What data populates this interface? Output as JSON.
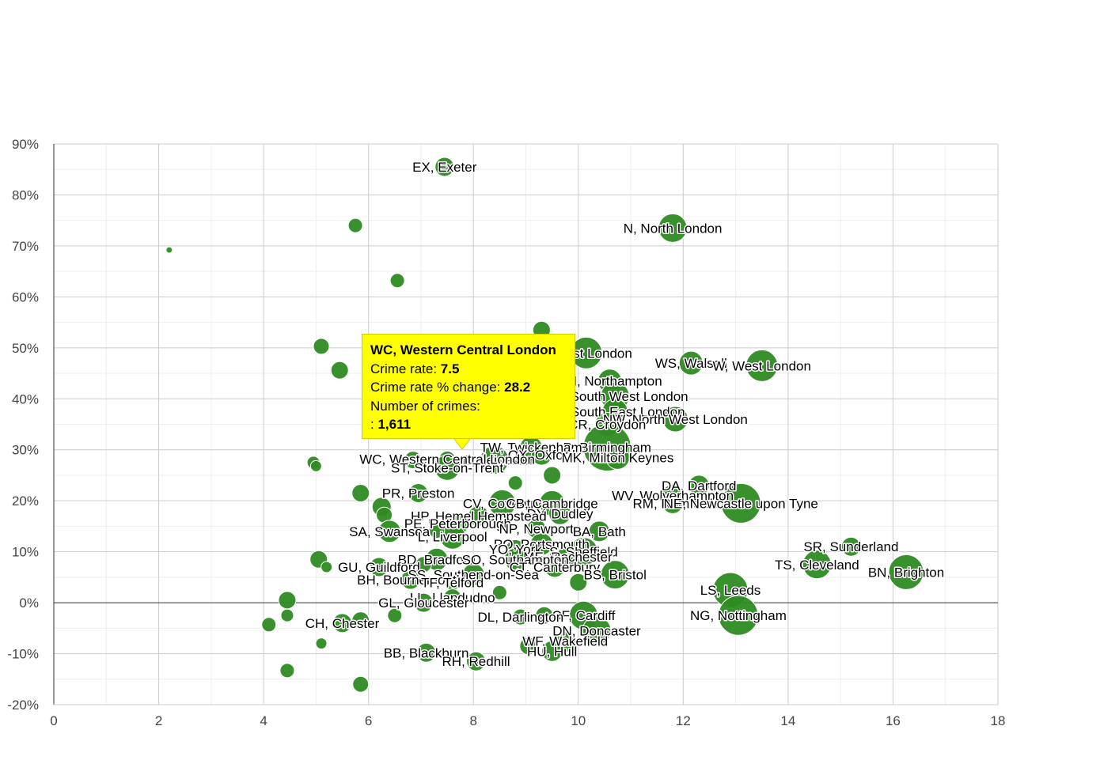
{
  "chart_data": {
    "type": "scatter",
    "xlim": [
      0,
      18
    ],
    "ylim": [
      -20,
      90
    ],
    "x_ticks": [
      "0",
      "2",
      "4",
      "6",
      "8",
      "10",
      "12",
      "14",
      "16",
      "18"
    ],
    "y_ticks": [
      "90%",
      "80%",
      "70%",
      "60%",
      "50%",
      "40%",
      "30%",
      "20%",
      "10%",
      "0%",
      "-10%",
      "-20%"
    ],
    "grid": true,
    "bubble_color": "#2e8b22",
    "points": [
      {
        "label": "EX, Exeter",
        "x": 7.45,
        "y": 85.5,
        "r": 12
      },
      {
        "label": "",
        "x": 2.2,
        "y": 69.2,
        "r": 4
      },
      {
        "label": "",
        "x": 5.75,
        "y": 74.0,
        "r": 9
      },
      {
        "label": "",
        "x": 6.55,
        "y": 63.2,
        "r": 9
      },
      {
        "label": "N, North London",
        "x": 11.8,
        "y": 73.5,
        "r": 18
      },
      {
        "label": "",
        "x": 9.3,
        "y": 53.5,
        "r": 11
      },
      {
        "label": "",
        "x": 5.1,
        "y": 50.3,
        "r": 10
      },
      {
        "label": "",
        "x": 5.45,
        "y": 45.6,
        "r": 11
      },
      {
        "label": "E, East London",
        "x": 10.15,
        "y": 49.0,
        "r": 20
      },
      {
        "label": "WS, Walsall",
        "x": 12.15,
        "y": 47.0,
        "r": 15
      },
      {
        "label": "W, West London",
        "x": 13.5,
        "y": 46.5,
        "r": 20
      },
      {
        "label": "NN, Northampton",
        "x": 10.6,
        "y": 43.5,
        "r": 15
      },
      {
        "label": "SW, South West London",
        "x": 10.7,
        "y": 40.5,
        "r": 18
      },
      {
        "label": "SE, South East London",
        "x": 10.7,
        "y": 37.5,
        "r": 16
      },
      {
        "label": "NW, North West London",
        "x": 11.85,
        "y": 36.0,
        "r": 16
      },
      {
        "label": "CR, Croydon",
        "x": 10.55,
        "y": 35.0,
        "r": 15
      },
      {
        "label": "B, Birmingham",
        "x": 10.55,
        "y": 30.5,
        "r": 30
      },
      {
        "label": "TW, Twickenham",
        "x": 9.1,
        "y": 30.5,
        "r": 14
      },
      {
        "label": "OX, Oxford",
        "x": 9.3,
        "y": 29.0,
        "r": 13
      },
      {
        "label": "MK, Milton Keynes",
        "x": 10.75,
        "y": 28.5,
        "r": 15
      },
      {
        "label": "LE, Leicester",
        "x": 8.4,
        "y": 28.0,
        "r": 18
      },
      {
        "label": "WC, Western Central London",
        "x": 7.5,
        "y": 28.2,
        "r": 10
      },
      {
        "label": "ST, Stoke-on-Trent",
        "x": 7.5,
        "y": 26.5,
        "r": 16
      },
      {
        "label": "",
        "x": 6.85,
        "y": 28.0,
        "r": 11
      },
      {
        "label": "",
        "x": 4.95,
        "y": 27.5,
        "r": 8
      },
      {
        "label": "",
        "x": 5.0,
        "y": 26.8,
        "r": 7
      },
      {
        "label": "",
        "x": 9.5,
        "y": 25.0,
        "r": 11
      },
      {
        "label": "",
        "x": 8.8,
        "y": 23.5,
        "r": 9
      },
      {
        "label": "DA, Dartford",
        "x": 12.3,
        "y": 23.0,
        "r": 13
      },
      {
        "label": "WV, Wolverhampton",
        "x": 11.8,
        "y": 21.0,
        "r": 14
      },
      {
        "label": "RM, Romford",
        "x": 11.8,
        "y": 19.5,
        "r": 13
      },
      {
        "label": "NE, Newcastle upon Tyne",
        "x": 13.1,
        "y": 19.5,
        "r": 25
      },
      {
        "label": "",
        "x": 5.85,
        "y": 21.5,
        "r": 11
      },
      {
        "label": "PR, Preston",
        "x": 6.95,
        "y": 21.5,
        "r": 12
      },
      {
        "label": "CV, Coventry",
        "x": 8.55,
        "y": 19.5,
        "r": 17
      },
      {
        "label": "CB, Cambridge",
        "x": 9.5,
        "y": 19.5,
        "r": 16
      },
      {
        "label": "DY, Dudley",
        "x": 9.65,
        "y": 17.5,
        "r": 14
      },
      {
        "label": "",
        "x": 6.25,
        "y": 18.8,
        "r": 12
      },
      {
        "label": "",
        "x": 6.3,
        "y": 17.2,
        "r": 10
      },
      {
        "label": "HP, Hemel Hempstead",
        "x": 8.1,
        "y": 17.0,
        "r": 13
      },
      {
        "label": "PE, Peterborough",
        "x": 7.7,
        "y": 15.5,
        "r": 14
      },
      {
        "label": "NP, Newport",
        "x": 9.2,
        "y": 14.5,
        "r": 12
      },
      {
        "label": "BA, Bath",
        "x": 10.4,
        "y": 14.0,
        "r": 13
      },
      {
        "label": "SA, Swansea",
        "x": 6.4,
        "y": 14.0,
        "r": 14
      },
      {
        "label": "L, Liverpool",
        "x": 7.6,
        "y": 13.0,
        "r": 16
      },
      {
        "label": "",
        "x": 7.3,
        "y": 14.2,
        "r": 10
      },
      {
        "label": "PO, Portsmouth",
        "x": 9.3,
        "y": 11.5,
        "r": 14
      },
      {
        "label": "YO, York",
        "x": 8.8,
        "y": 10.5,
        "r": 12
      },
      {
        "label": "S, Sheffield",
        "x": 10.1,
        "y": 10.0,
        "r": 18
      },
      {
        "label": "ME, Rochester",
        "x": 9.8,
        "y": 9.0,
        "r": 14
      },
      {
        "label": "BD, Bradford",
        "x": 7.3,
        "y": 8.5,
        "r": 14
      },
      {
        "label": "SO, Southampton",
        "x": 8.8,
        "y": 8.5,
        "r": 14
      },
      {
        "label": "CT, Canterbury",
        "x": 9.55,
        "y": 7.0,
        "r": 13
      },
      {
        "label": "",
        "x": 5.05,
        "y": 8.5,
        "r": 11
      },
      {
        "label": "",
        "x": 5.2,
        "y": 7.0,
        "r": 7
      },
      {
        "label": "GU, Guildford",
        "x": 6.2,
        "y": 7.0,
        "r": 12
      },
      {
        "label": "",
        "x": 7.05,
        "y": 7.5,
        "r": 10
      },
      {
        "label": "SS, Southend-on-Sea",
        "x": 8.0,
        "y": 5.5,
        "r": 14
      },
      {
        "label": "BS, Bristol",
        "x": 10.7,
        "y": 5.5,
        "r": 18
      },
      {
        "label": "BH, Bournemouth",
        "x": 6.8,
        "y": 4.5,
        "r": 12
      },
      {
        "label": "TF, Telford",
        "x": 7.6,
        "y": 4.0,
        "r": 10
      },
      {
        "label": "",
        "x": 10.0,
        "y": 4.0,
        "r": 11
      },
      {
        "label": "",
        "x": 8.5,
        "y": 2.0,
        "r": 9
      },
      {
        "label": "LL, Llandudno",
        "x": 7.6,
        "y": 1.0,
        "r": 11
      },
      {
        "label": "GL, Gloucester",
        "x": 7.05,
        "y": 0.0,
        "r": 12
      },
      {
        "label": "",
        "x": 4.45,
        "y": 0.5,
        "r": 11
      },
      {
        "label": "LS, Leeds",
        "x": 12.9,
        "y": 2.5,
        "r": 22
      },
      {
        "label": "SR, Sunderland",
        "x": 15.2,
        "y": 11.0,
        "r": 12
      },
      {
        "label": "TS, Cleveland",
        "x": 14.55,
        "y": 7.5,
        "r": 18
      },
      {
        "label": "BN, Brighton",
        "x": 16.25,
        "y": 6.0,
        "r": 22
      },
      {
        "label": "NG, Nottingham",
        "x": 13.05,
        "y": -2.5,
        "r": 25
      },
      {
        "label": "CF, Cardiff",
        "x": 10.1,
        "y": -2.5,
        "r": 18
      },
      {
        "label": "DL, Darlington",
        "x": 8.9,
        "y": -2.8,
        "r": 10
      },
      {
        "label": "",
        "x": 9.35,
        "y": -2.5,
        "r": 11
      },
      {
        "label": "",
        "x": 4.45,
        "y": -2.5,
        "r": 8
      },
      {
        "label": "",
        "x": 6.5,
        "y": -2.5,
        "r": 9
      },
      {
        "label": "CH, Chester",
        "x": 5.5,
        "y": -4.0,
        "r": 12
      },
      {
        "label": "",
        "x": 5.85,
        "y": -3.5,
        "r": 11
      },
      {
        "label": "",
        "x": 4.1,
        "y": -4.3,
        "r": 9
      },
      {
        "label": "DN, Doncaster",
        "x": 10.35,
        "y": -5.5,
        "r": 18
      },
      {
        "label": "",
        "x": 5.1,
        "y": -8.0,
        "r": 7
      },
      {
        "label": "WF, Wakefield",
        "x": 9.75,
        "y": -7.5,
        "r": 14
      },
      {
        "label": "",
        "x": 9.05,
        "y": -8.5,
        "r": 11
      },
      {
        "label": "HU, Hull",
        "x": 9.5,
        "y": -9.5,
        "r": 13
      },
      {
        "label": "BB, Blackburn",
        "x": 7.1,
        "y": -9.8,
        "r": 12
      },
      {
        "label": "RH, Redhill",
        "x": 8.05,
        "y": -11.5,
        "r": 12
      },
      {
        "label": "",
        "x": 4.45,
        "y": -13.3,
        "r": 9
      },
      {
        "label": "",
        "x": 5.85,
        "y": -16.0,
        "r": 10
      }
    ]
  },
  "tooltip": {
    "title": "WC, Western Central London",
    "line1_label": "Crime rate: ",
    "line1_value": "7.5",
    "line2_label": "Crime rate % change: ",
    "line2_value": "28.2",
    "line3_label": "Number of crimes:",
    "line4_label": ": ",
    "line4_value": "1,611"
  }
}
